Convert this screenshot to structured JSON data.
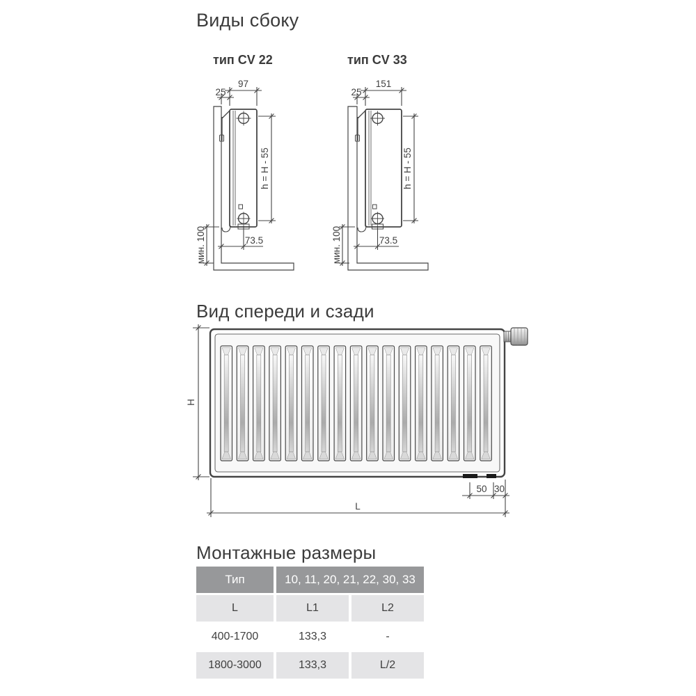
{
  "side_views": {
    "title": "Виды сбоку",
    "cv22": {
      "label": "тип CV 22",
      "dim_width": "97",
      "dim_wall_gap": "25",
      "dim_height": "h = H - 55",
      "dim_floor_clearance": "мин. 100",
      "dim_pipe_offset": "73.5"
    },
    "cv33": {
      "label": "тип CV 33",
      "dim_width": "151",
      "dim_wall_gap": "25",
      "dim_height": "h = H - 55",
      "dim_floor_clearance": "мин. 100",
      "dim_pipe_offset": "73.5"
    }
  },
  "front_view": {
    "title": "Вид спереди и сзади",
    "dim_height": "H",
    "dim_length": "L",
    "dim_bracket_inset": "50",
    "dim_bracket_edge": "30",
    "fin_count": 17
  },
  "mounting_table": {
    "title": "Монтажные размеры",
    "col_type_header": "Тип",
    "col_types_values": "10, 11, 20, 21, 22, 30, 33",
    "sub_headers": [
      "L",
      "L1",
      "L2"
    ],
    "rows": [
      [
        "400-1700",
        "133,3",
        "-"
      ],
      [
        "1800-3000",
        "133,3",
        "L/2"
      ]
    ]
  },
  "colors": {
    "drawing_line": "#454545",
    "text": "#3d3d3d",
    "table_header_bg": "#97989a",
    "table_header_text": "#ffffff",
    "table_alt_row_bg": "#e4e4e6",
    "table_text": "#3f3f3f"
  }
}
